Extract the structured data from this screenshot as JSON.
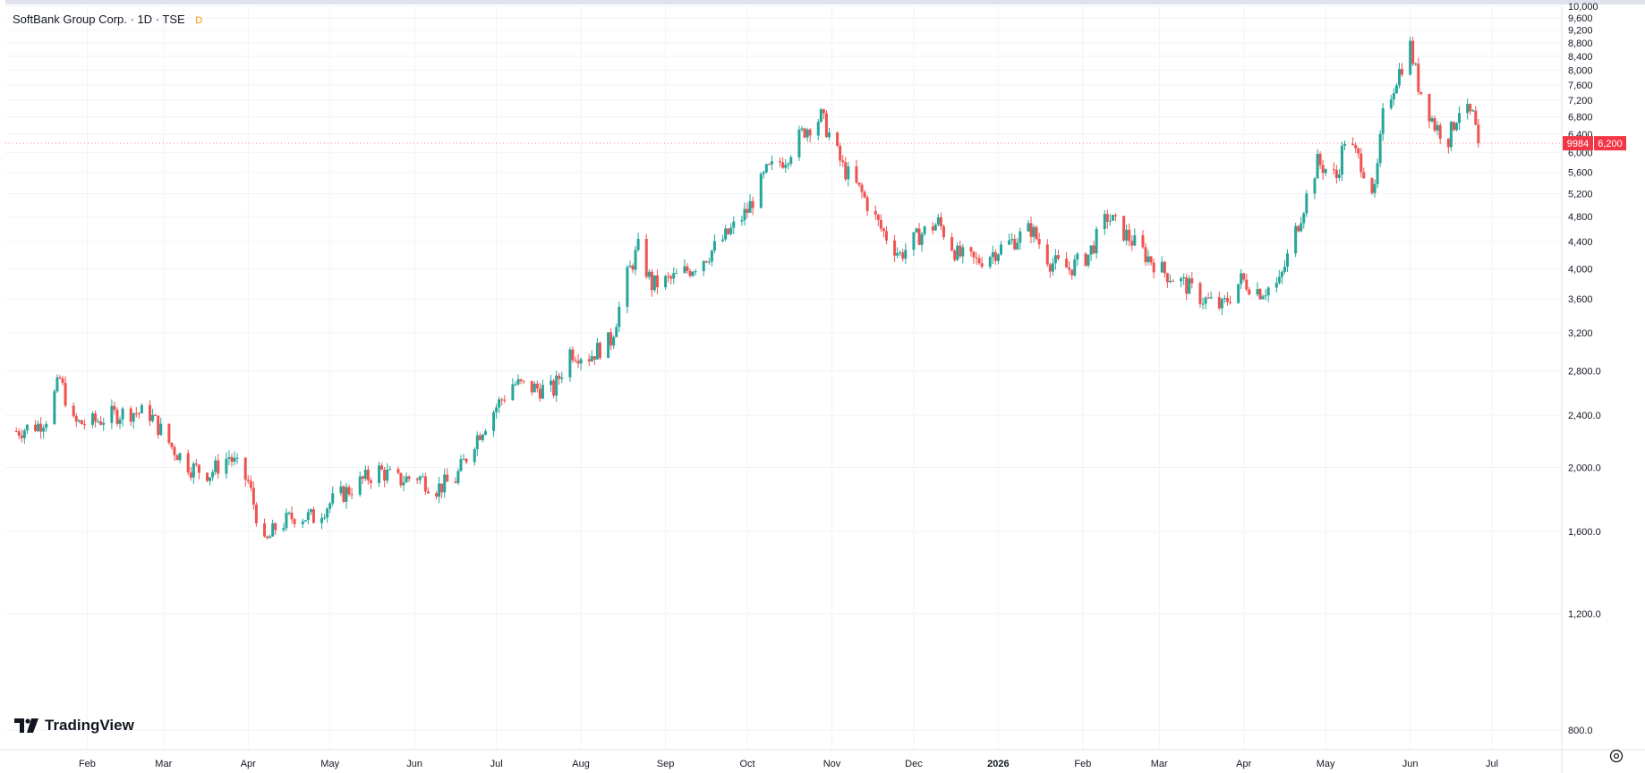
{
  "header": {
    "symbol_title": "SoftBank Group Corp. · 1D · TSE",
    "dot_label": "D"
  },
  "brand": {
    "name": "TradingView"
  },
  "last_price": {
    "ticker": "9984",
    "value": "6,200"
  },
  "icons": {
    "settings": "gear-icon",
    "logo": "tradingview-logo-icon"
  },
  "colors": {
    "up": "#26a69a",
    "down": "#ef5350",
    "grid": "#f0f3fa",
    "axis_text": "#131722",
    "price_tag": "#f23645"
  },
  "chart_data": {
    "type": "candlestick",
    "title": "",
    "ylim": [
      800,
      10000
    ],
    "y_scale": "log",
    "grid": true,
    "y_ticks": [
      "800.0",
      "1,200.0",
      "1,600.0",
      "2,000.0",
      "2,400.0",
      "2,800.0",
      "3,200",
      "3,600",
      "4,000",
      "4,400",
      "4,800",
      "5,200",
      "5,600",
      "6,000",
      "6,400",
      "6,800",
      "7,200",
      "7,600",
      "8,000",
      "8,400",
      "8,800",
      "9,200",
      "9,600",
      "10,000"
    ],
    "y_tick_values": [
      800,
      1200,
      1600,
      2000,
      2400,
      2800,
      3200,
      3600,
      4000,
      4400,
      4800,
      5200,
      5600,
      6000,
      6400,
      6800,
      7200,
      7600,
      8000,
      8400,
      8800,
      9200,
      9600,
      10000
    ],
    "x_ticks": [
      "Feb",
      "Mar",
      "Apr",
      "May",
      "Jun",
      "Jul",
      "Aug",
      "Sep",
      "Oct",
      "Nov",
      "Dec",
      "2026",
      "Feb",
      "Mar",
      "Apr",
      "May",
      "Jun",
      "Jul"
    ],
    "x_tick_dates": [
      "2025-02-01",
      "2025-03-01",
      "2025-04-01",
      "2025-05-01",
      "2025-06-01",
      "2025-07-01",
      "2025-08-01",
      "2025-09-01",
      "2025-10-01",
      "2025-11-01",
      "2025-12-01",
      "2026-01-01",
      "2026-02-01",
      "2026-03-01",
      "2026-04-01",
      "2026-05-01",
      "2026-06-01",
      "2026-07-01"
    ],
    "closes": [
      {
        "date": "2025-01-06",
        "close": 2270
      },
      {
        "date": "2025-01-09",
        "close": 2290
      },
      {
        "date": "2025-01-14",
        "close": 2320
      },
      {
        "date": "2025-01-17",
        "close": 2380
      },
      {
        "date": "2025-01-22",
        "close": 2720
      },
      {
        "date": "2025-01-27",
        "close": 2330
      },
      {
        "date": "2025-02-03",
        "close": 2340
      },
      {
        "date": "2025-02-10",
        "close": 2400
      },
      {
        "date": "2025-02-17",
        "close": 2430
      },
      {
        "date": "2025-02-24",
        "close": 2410
      },
      {
        "date": "2025-03-04",
        "close": 2150
      },
      {
        "date": "2025-03-11",
        "close": 2000
      },
      {
        "date": "2025-03-18",
        "close": 1960
      },
      {
        "date": "2025-03-25",
        "close": 2080
      },
      {
        "date": "2025-04-01",
        "close": 1900
      },
      {
        "date": "2025-04-07",
        "close": 1520
      },
      {
        "date": "2025-04-11",
        "close": 1620
      },
      {
        "date": "2025-04-18",
        "close": 1690
      },
      {
        "date": "2025-04-25",
        "close": 1680
      },
      {
        "date": "2025-05-02",
        "close": 1780
      },
      {
        "date": "2025-05-12",
        "close": 1900
      },
      {
        "date": "2025-05-19",
        "close": 1980
      },
      {
        "date": "2025-05-26",
        "close": 1910
      },
      {
        "date": "2025-06-02",
        "close": 1940
      },
      {
        "date": "2025-06-09",
        "close": 1860
      },
      {
        "date": "2025-06-16",
        "close": 1920
      },
      {
        "date": "2025-06-23",
        "close": 2200
      },
      {
        "date": "2025-06-30",
        "close": 2440
      },
      {
        "date": "2025-07-07",
        "close": 2680
      },
      {
        "date": "2025-07-14",
        "close": 2640
      },
      {
        "date": "2025-07-22",
        "close": 2620
      },
      {
        "date": "2025-07-28",
        "close": 3000
      },
      {
        "date": "2025-08-04",
        "close": 2950
      },
      {
        "date": "2025-08-12",
        "close": 3120
      },
      {
        "date": "2025-08-18",
        "close": 3900
      },
      {
        "date": "2025-08-22",
        "close": 4300
      },
      {
        "date": "2025-08-27",
        "close": 3780
      },
      {
        "date": "2025-09-03",
        "close": 3850
      },
      {
        "date": "2025-09-10",
        "close": 4000
      },
      {
        "date": "2025-09-17",
        "close": 4220
      },
      {
        "date": "2025-09-24",
        "close": 4520
      },
      {
        "date": "2025-10-01",
        "close": 4900
      },
      {
        "date": "2025-10-08",
        "close": 5600
      },
      {
        "date": "2025-10-15",
        "close": 5900
      },
      {
        "date": "2025-10-22",
        "close": 6500
      },
      {
        "date": "2025-10-28",
        "close": 6800
      },
      {
        "date": "2025-10-31",
        "close": 6400
      },
      {
        "date": "2025-11-05",
        "close": 5700
      },
      {
        "date": "2025-11-12",
        "close": 5200
      },
      {
        "date": "2025-11-19",
        "close": 4600
      },
      {
        "date": "2025-11-26",
        "close": 4200
      },
      {
        "date": "2025-12-03",
        "close": 4500
      },
      {
        "date": "2025-12-10",
        "close": 4700
      },
      {
        "date": "2025-12-17",
        "close": 4200
      },
      {
        "date": "2025-12-24",
        "close": 4100
      },
      {
        "date": "2026-01-06",
        "close": 4400
      },
      {
        "date": "2026-01-13",
        "close": 4600
      },
      {
        "date": "2026-01-20",
        "close": 4100
      },
      {
        "date": "2026-01-27",
        "close": 4000
      },
      {
        "date": "2026-02-03",
        "close": 4200
      },
      {
        "date": "2026-02-10",
        "close": 4800
      },
      {
        "date": "2026-02-17",
        "close": 4500
      },
      {
        "date": "2026-02-24",
        "close": 4200
      },
      {
        "date": "2026-03-03",
        "close": 3950
      },
      {
        "date": "2026-03-10",
        "close": 3800
      },
      {
        "date": "2026-03-17",
        "close": 3600
      },
      {
        "date": "2026-03-24",
        "close": 3500
      },
      {
        "date": "2026-03-31",
        "close": 3850
      },
      {
        "date": "2026-04-07",
        "close": 3700
      },
      {
        "date": "2026-04-14",
        "close": 3800
      },
      {
        "date": "2026-04-21",
        "close": 4700
      },
      {
        "date": "2026-04-28",
        "close": 5800
      },
      {
        "date": "2026-05-05",
        "close": 5500
      },
      {
        "date": "2026-05-08",
        "close": 6300
      },
      {
        "date": "2026-05-14",
        "close": 5800
      },
      {
        "date": "2026-05-19",
        "close": 5200
      },
      {
        "date": "2026-05-22",
        "close": 6800
      },
      {
        "date": "2026-05-27",
        "close": 7800
      },
      {
        "date": "2026-06-01",
        "close": 8700
      },
      {
        "date": "2026-06-04",
        "close": 7600
      },
      {
        "date": "2026-06-10",
        "close": 6600
      },
      {
        "date": "2026-06-15",
        "close": 6300
      },
      {
        "date": "2026-06-19",
        "close": 7000
      },
      {
        "date": "2026-06-24",
        "close": 6800
      },
      {
        "date": "2026-06-26",
        "close": 6200
      }
    ],
    "last_value": 6200
  }
}
